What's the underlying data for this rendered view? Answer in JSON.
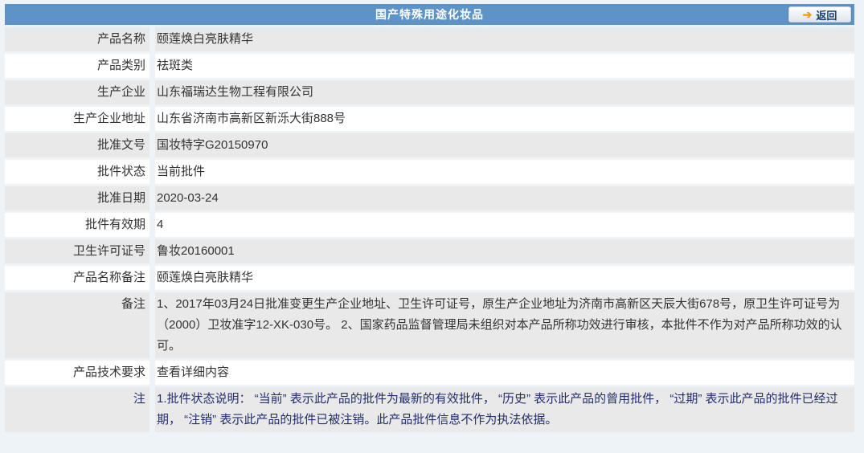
{
  "header": {
    "title": "国产特殊用途化妆品",
    "back_button": {
      "label": "返回",
      "icon": "back-arrow-icon",
      "glyph": "➔"
    }
  },
  "colors": {
    "header_bg": "#5e93c8",
    "header_text": "#ffffff",
    "row_alt_bg": "#e9e9e9",
    "row_bg": "#ffffff",
    "body_text": "#333333",
    "note_text": "#242e6c",
    "back_arrow": "#f59c0c",
    "back_label": "#17406f",
    "page_bg": "#edf3f7"
  },
  "table": {
    "rows": [
      {
        "label": "产品名称",
        "value": "颐莲焕白亮肤精华"
      },
      {
        "label": "产品类别",
        "value": "祛斑类"
      },
      {
        "label": "生产企业",
        "value": "山东福瑞达生物工程有限公司"
      },
      {
        "label": "生产企业地址",
        "value": "山东省济南市高新区新泺大街888号"
      },
      {
        "label": "批准文号",
        "value": "国妆特字G20150970"
      },
      {
        "label": "批件状态",
        "value": "当前批件"
      },
      {
        "label": "批准日期",
        "value": "2020-03-24"
      },
      {
        "label": "批件有效期",
        "value": "4"
      },
      {
        "label": "卫生许可证号",
        "value": "鲁妆20160001"
      },
      {
        "label": "产品名称备注",
        "value": "颐莲焕白亮肤精华"
      },
      {
        "label": "备注",
        "value": "1、2017年03月24日批准变更生产企业地址、卫生许可证号，原生产企业地址为济南市高新区天辰大街678号，原卫生许可证号为（2000）卫妆准字12-XK-030号。 2、国家药品监督管理局未组织对本产品所称功效进行审核，本批件不作为对产品所称功效的认可。"
      },
      {
        "label": "产品技术要求",
        "value": "查看详细内容"
      },
      {
        "label": "注",
        "value": "1.批件状态说明： “当前” 表示此产品的批件为最新的有效批件， “历史” 表示此产品的曾用批件， “过期” 表示此产品的批件已经过期， “注销” 表示此产品的批件已被注销。此产品批件信息不作为执法依据。"
      }
    ]
  }
}
